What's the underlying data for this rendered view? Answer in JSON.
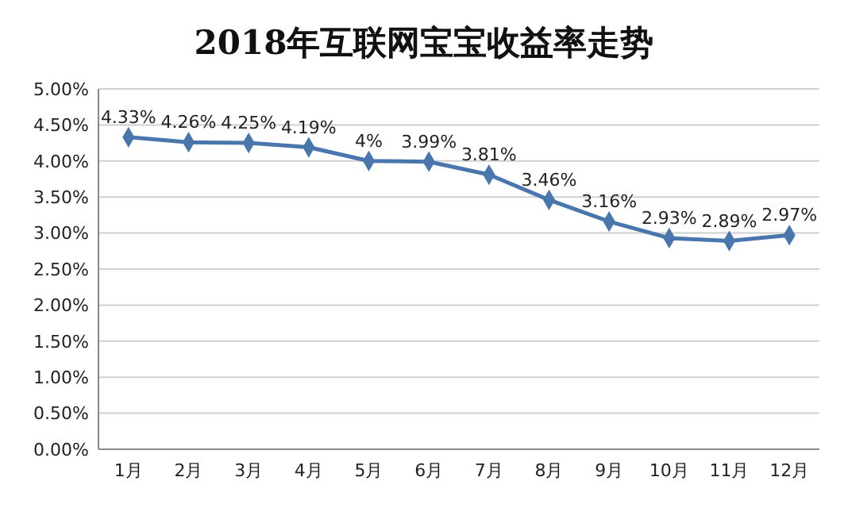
{
  "chart_data": {
    "type": "line",
    "title": "2018年互联网宝宝收益率走势",
    "categories": [
      "1月",
      "2月",
      "3月",
      "4月",
      "5月",
      "6月",
      "7月",
      "8月",
      "9月",
      "10月",
      "11月",
      "12月"
    ],
    "series": [
      {
        "color": "#4a76ae",
        "values": [
          4.33,
          4.26,
          4.25,
          4.19,
          4,
          3.99,
          3.81,
          3.46,
          3.16,
          2.93,
          2.89,
          2.97
        ],
        "value_labels": [
          "4.33%",
          "4.26%",
          "4.25%",
          "4.19%",
          "4%",
          "3.99%",
          "3.81%",
          "3.46%",
          "3.16%",
          "2.93%",
          "2.89%",
          "2.97%"
        ]
      }
    ],
    "ylim": [
      0,
      5
    ],
    "yticks": [
      {
        "value": 0,
        "label": "0.00%"
      },
      {
        "value": 0.5,
        "label": "0.50%"
      },
      {
        "value": 1,
        "label": "1.00%"
      },
      {
        "value": 1.5,
        "label": "1.50%"
      },
      {
        "value": 2,
        "label": "2.00%"
      },
      {
        "value": 2.5,
        "label": "2.50%"
      },
      {
        "value": 3,
        "label": "3.00%"
      },
      {
        "value": 3.5,
        "label": "3.50%"
      },
      {
        "value": 4,
        "label": "4.00%"
      },
      {
        "value": 4.5,
        "label": "4.50%"
      },
      {
        "value": 5,
        "label": "5.00%"
      }
    ],
    "grid": "y",
    "marker": "diamond",
    "line_style": "solid"
  }
}
